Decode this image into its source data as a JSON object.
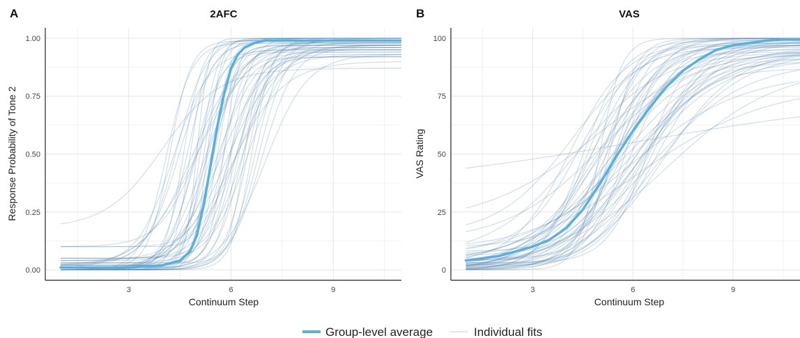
{
  "colors": {
    "group": "#56b1e0",
    "individual": "#4a7cad",
    "grid_major": "#e6e6e6",
    "grid_minor": "#f1f1f1",
    "axis": "#222222"
  },
  "legend": {
    "position": "bottom",
    "entries": [
      {
        "label": "Group-level average",
        "style": "thick-line"
      },
      {
        "label": "Individual fits",
        "style": "thin-line"
      }
    ]
  },
  "chart_data": [
    {
      "panel_letter": "A",
      "type": "line",
      "title": "2AFC",
      "xlabel": "Continuum Step",
      "ylabel": "Response Probability of Tone 2",
      "xlim": [
        1,
        11
      ],
      "ylim": [
        0,
        1
      ],
      "xticks": [
        3,
        6,
        9
      ],
      "xtick_labels": [
        "3",
        "6",
        "9"
      ],
      "yticks": [
        0,
        0.25,
        0.5,
        0.75,
        1
      ],
      "ytick_labels": [
        "0.00",
        "0.25",
        "0.50",
        "0.75",
        "1.00"
      ],
      "grid": true,
      "group_average": {
        "name": "Group-level average",
        "x": [
          1,
          2,
          3,
          3.5,
          4,
          4.5,
          4.8,
          5,
          5.2,
          5.4,
          5.6,
          5.8,
          6,
          6.2,
          6.4,
          6.7,
          7,
          7.5,
          8,
          9,
          10,
          11
        ],
        "y": [
          0.01,
          0.01,
          0.01,
          0.015,
          0.02,
          0.04,
          0.08,
          0.15,
          0.28,
          0.45,
          0.62,
          0.76,
          0.87,
          0.93,
          0.96,
          0.98,
          0.99,
          0.99,
          0.99,
          0.99,
          0.99,
          0.99
        ]
      },
      "individual_fits": {
        "name": "Individual fits",
        "model": "logistic",
        "params": [
          [
            5.5,
            2.8,
            0.02,
            0.98
          ],
          [
            5.2,
            3.5,
            0.0,
            1.0
          ],
          [
            6.0,
            2.2,
            0.05,
            0.95
          ],
          [
            4.8,
            4.0,
            0.0,
            0.99
          ],
          [
            6.5,
            1.8,
            0.03,
            0.97
          ],
          [
            5.7,
            2.5,
            0.1,
            0.92
          ],
          [
            5.0,
            1.2,
            0.0,
            1.0
          ],
          [
            6.2,
            3.0,
            0.0,
            0.96
          ],
          [
            4.5,
            2.0,
            0.02,
            1.0
          ],
          [
            5.9,
            1.5,
            0.04,
            0.93
          ],
          [
            6.8,
            2.4,
            0.0,
            0.98
          ],
          [
            5.3,
            5.0,
            0.0,
            1.0
          ],
          [
            4.2,
            3.2,
            0.01,
            0.99
          ],
          [
            6.0,
            1.3,
            0.0,
            0.9
          ],
          [
            5.6,
            3.8,
            0.02,
            0.97
          ],
          [
            4.9,
            2.6,
            0.0,
            0.94
          ],
          [
            6.4,
            2.0,
            0.05,
            1.0
          ],
          [
            5.1,
            1.7,
            0.1,
            0.96
          ],
          [
            7.0,
            1.6,
            0.0,
            0.93
          ],
          [
            5.8,
            4.5,
            0.03,
            1.0
          ],
          [
            4.0,
            1.2,
            0.18,
            0.87
          ],
          [
            5.4,
            2.1,
            0.0,
            0.98
          ],
          [
            6.6,
            3.4,
            0.0,
            0.99
          ],
          [
            5.0,
            6.0,
            0.02,
            1.0
          ],
          [
            6.1,
            1.9,
            0.0,
            0.95
          ],
          [
            5.3,
            2.9,
            0.04,
            0.97
          ],
          [
            4.6,
            3.6,
            0.0,
            0.99
          ],
          [
            6.3,
            2.7,
            0.01,
            0.92
          ],
          [
            5.7,
            1.4,
            0.0,
            0.97
          ],
          [
            4.4,
            2.3,
            0.03,
            1.0
          ],
          [
            6.9,
            2.1,
            0.0,
            0.96
          ],
          [
            5.5,
            4.2,
            0.1,
            0.99
          ],
          [
            5.2,
            1.8,
            0.0,
            0.94
          ],
          [
            6.0,
            3.3,
            0.02,
            1.0
          ],
          [
            4.7,
            2.8,
            0.0,
            0.98
          ],
          [
            6.2,
            1.5,
            0.04,
            0.97
          ],
          [
            5.9,
            2.3,
            0.0,
            0.93
          ],
          [
            5.1,
            3.9,
            0.01,
            1.0
          ],
          [
            6.7,
            2.6,
            0.0,
            0.99
          ],
          [
            4.3,
            1.9,
            0.02,
            0.95
          ],
          [
            5.6,
            1.6,
            0.0,
            0.98
          ],
          [
            6.4,
            4.1,
            0.03,
            0.96
          ],
          [
            5.0,
            2.2,
            0.0,
            1.0
          ],
          [
            5.8,
            3.1,
            0.05,
            0.97
          ],
          [
            6.1,
            2.5,
            0.0,
            0.92
          ],
          [
            4.9,
            1.4,
            0.02,
            0.99
          ],
          [
            5.4,
            3.7,
            0.0,
            0.95
          ],
          [
            6.5,
            2.9,
            0.01,
            1.0
          ],
          [
            5.3,
            2.0,
            0.0,
            0.97
          ],
          [
            4.1,
            2.7,
            0.0,
            0.98
          ]
        ]
      }
    },
    {
      "panel_letter": "B",
      "type": "line",
      "title": "VAS",
      "xlabel": "Continuum Step",
      "ylabel": "VAS Rating",
      "xlim": [
        1,
        11
      ],
      "ylim": [
        0,
        100
      ],
      "xticks": [
        3,
        6,
        9
      ],
      "xtick_labels": [
        "3",
        "6",
        "9"
      ],
      "yticks": [
        0,
        25,
        50,
        75,
        100
      ],
      "ytick_labels": [
        "0",
        "25",
        "50",
        "75",
        "100"
      ],
      "grid": true,
      "group_average": {
        "name": "Group-level average",
        "x": [
          1,
          1.5,
          2,
          2.5,
          3,
          3.5,
          4,
          4.5,
          5,
          5.5,
          6,
          6.5,
          7,
          7.5,
          8,
          8.5,
          9,
          9.5,
          10,
          10.5,
          11
        ],
        "y": [
          4,
          5,
          6,
          8,
          10,
          13,
          18,
          26,
          37,
          49,
          60,
          70,
          79,
          86,
          91,
          95,
          97,
          98,
          99,
          99.5,
          99.5
        ]
      },
      "individual_fits": {
        "name": "Individual fits",
        "model": "logistic",
        "params": [
          [
            5.5,
            1.5,
            0,
            100
          ],
          [
            5.0,
            1.0,
            5,
            98
          ],
          [
            6.0,
            0.8,
            0,
            95
          ],
          [
            4.8,
            1.3,
            2,
            100
          ],
          [
            6.5,
            0.7,
            0,
            90
          ],
          [
            5.7,
            1.1,
            10,
            97
          ],
          [
            5.2,
            2.0,
            0,
            100
          ],
          [
            6.2,
            0.9,
            3,
            92
          ],
          [
            4.5,
            1.6,
            0,
            99
          ],
          [
            5.9,
            0.6,
            5,
            85
          ],
          [
            6.8,
            0.8,
            0,
            94
          ],
          [
            5.3,
            2.5,
            2,
            100
          ],
          [
            4.4,
            1.2,
            8,
            96
          ],
          [
            6.0,
            0.5,
            0,
            80
          ],
          [
            5.6,
            1.4,
            4,
            98
          ],
          [
            4.9,
            0.9,
            0,
            93
          ],
          [
            6.4,
            1.0,
            6,
            99
          ],
          [
            5.1,
            0.7,
            12,
            95
          ],
          [
            7.0,
            0.6,
            0,
            88
          ],
          [
            5.8,
            1.8,
            3,
            100
          ],
          [
            6.0,
            0.25,
            35,
            75
          ],
          [
            5.4,
            1.0,
            0,
            97
          ],
          [
            6.6,
            1.2,
            2,
            99
          ],
          [
            5.0,
            3.0,
            0,
            100
          ],
          [
            6.1,
            0.8,
            0,
            91
          ],
          [
            5.3,
            1.3,
            7,
            98
          ],
          [
            4.6,
            1.5,
            0,
            97
          ],
          [
            6.3,
            1.1,
            1,
            93
          ],
          [
            5.7,
            0.6,
            0,
            96
          ],
          [
            4.2,
            0.9,
            15,
            99
          ],
          [
            6.9,
            0.9,
            0,
            95
          ],
          [
            5.5,
            1.9,
            5,
            100
          ],
          [
            5.2,
            0.8,
            0,
            92
          ],
          [
            6.0,
            1.4,
            4,
            100
          ],
          [
            4.7,
            1.1,
            0,
            97
          ],
          [
            6.2,
            0.7,
            9,
            96
          ],
          [
            5.9,
            1.0,
            0,
            90
          ],
          [
            5.1,
            1.6,
            2,
            100
          ],
          [
            6.7,
            1.1,
            0,
            98
          ],
          [
            4.3,
            0.8,
            6,
            94
          ],
          [
            5.6,
            0.7,
            0,
            97
          ],
          [
            6.4,
            1.7,
            3,
            95
          ],
          [
            5.0,
            1.0,
            0,
            100
          ],
          [
            5.8,
            1.3,
            8,
            97
          ],
          [
            6.1,
            1.1,
            0,
            87
          ],
          [
            4.9,
            0.6,
            20,
            96
          ],
          [
            5.4,
            1.5,
            0,
            94
          ],
          [
            6.5,
            1.2,
            1,
            100
          ],
          [
            5.3,
            0.9,
            0,
            96
          ],
          [
            4.1,
            1.2,
            3,
            98
          ]
        ]
      }
    }
  ]
}
